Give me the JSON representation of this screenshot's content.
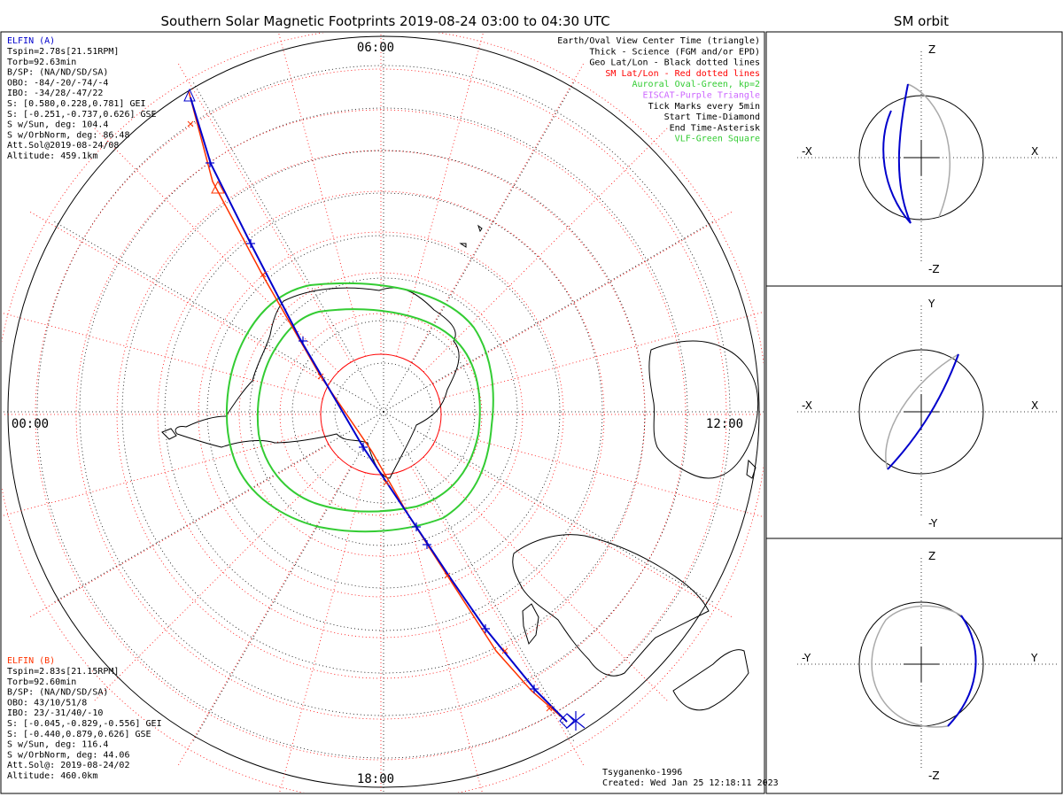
{
  "header": {
    "main_title": "Southern Solar Magnetic Footprints 2019-08-24 03:00 to 04:30 UTC",
    "orbit_title": "SM orbit"
  },
  "time_labels": {
    "top": "06:00",
    "left": "00:00",
    "right": "12:00",
    "bottom": "18:00"
  },
  "sat_a": {
    "name": "ELFIN (A)",
    "lines": [
      "Tspin=2.78s[21.51RPM]",
      "Torb=92.63min",
      "B/SP: (NA/ND/SD/SA)",
      "OBO: -84/-20/-74/-4",
      "IBO: -34/28/-47/22",
      "S: [0.580,0.228,0.781] GEI",
      "S: [-0.251,-0.737,0.626] GSE",
      "S w/Sun, deg: 104.4",
      "S w/OrbNorm, deg: 86.48",
      "Att.Sol@2019-08-24/08",
      "Altitude: 459.1km"
    ]
  },
  "sat_b": {
    "name": "ELFIN (B)",
    "lines": [
      "Tspin=2.83s[21.15RPM]",
      "Torb=92.60min",
      "B/SP: (NA/ND/SD/SA)",
      "OBO: 43/10/51/8",
      "IBO: 23/-31/40/-10",
      "S: [-0.045,-0.829,-0.556] GEI",
      "S: [-0.440,0.879,0.626] GSE",
      "S w/Sun, deg: 116.4",
      "S w/OrbNorm, deg: 44.06",
      "Att.Sol@: 2019-08-24/02",
      "Altitude: 460.0km"
    ]
  },
  "legend": [
    {
      "text": "Earth/Oval View Center Time (triangle)",
      "color": "#000000"
    },
    {
      "text": "Thick - Science (FGM and/or EPD)",
      "color": "#000000"
    },
    {
      "text": "Geo Lat/Lon - Black dotted lines",
      "color": "#000000"
    },
    {
      "text": "SM Lat/Lon - Red dotted lines",
      "color": "#ff0000"
    },
    {
      "text": "Auroral Oval-Green, kp=2",
      "color": "#33cc33"
    },
    {
      "text": "EISCAT-Purple Triangle",
      "color": "#cc66ff"
    },
    {
      "text": "Tick Marks every 5min",
      "color": "#000000"
    },
    {
      "text": "Start Time-Diamond",
      "color": "#000000"
    },
    {
      "text": "End Time-Asterisk",
      "color": "#000000"
    },
    {
      "text": "VLF-Green Square",
      "color": "#33cc33"
    }
  ],
  "footer": {
    "model": "Tsyganenko-1996",
    "created": "Created: Wed Jan 25 12:18:11 2023"
  },
  "orbit_panels": [
    {
      "top": "Z",
      "bottom": "-Z",
      "left": "-X",
      "right": "X"
    },
    {
      "top": "Y",
      "bottom": "-Y",
      "left": "-X",
      "right": "X"
    },
    {
      "top": "Z",
      "bottom": "-Z",
      "left": "-Y",
      "right": "Y"
    }
  ],
  "colors": {
    "sat_a": "#0000cc",
    "sat_b": "#ff3300",
    "oval": "#33cc33",
    "sm_grid": "#ff0000",
    "geo_grid": "#000000"
  }
}
